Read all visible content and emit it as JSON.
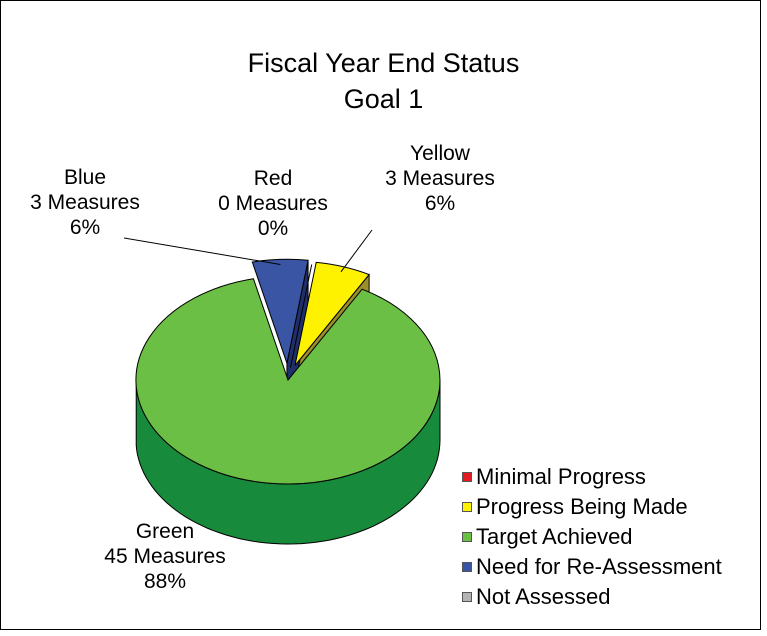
{
  "chart_data": {
    "type": "pie",
    "three_d": true,
    "title": "Fiscal Year End Status",
    "subtitle": "Goal 1",
    "slices": [
      {
        "name": "Red",
        "count_text": "0 Measures",
        "pct_text": "0%",
        "value": 0,
        "color": "#e31b23",
        "side_color": "#a01218"
      },
      {
        "name": "Yellow",
        "count_text": "3 Measures",
        "pct_text": "6%",
        "value": 3,
        "color": "#fff200",
        "side_color": "#9a8f2a"
      },
      {
        "name": "Green",
        "count_text": "45 Measures",
        "pct_text": "88%",
        "value": 45,
        "color": "#6cbf45",
        "side_color": "#178a3c"
      },
      {
        "name": "Blue",
        "count_text": "3 Measures",
        "pct_text": "6%",
        "value": 3,
        "color": "#3b55a5",
        "side_color": "#1f2f6b"
      }
    ],
    "legend": {
      "position": "bottom-right",
      "items": [
        {
          "label": "Minimal Progress",
          "color": "#e31b23"
        },
        {
          "label": "Progress Being Made",
          "color": "#fff200"
        },
        {
          "label": "Target Achieved",
          "color": "#6cbf45"
        },
        {
          "label": "Need for Re-Assessment",
          "color": "#3b55a5"
        },
        {
          "label": "Not Assessed",
          "color": "#b3b3b3"
        }
      ]
    }
  }
}
